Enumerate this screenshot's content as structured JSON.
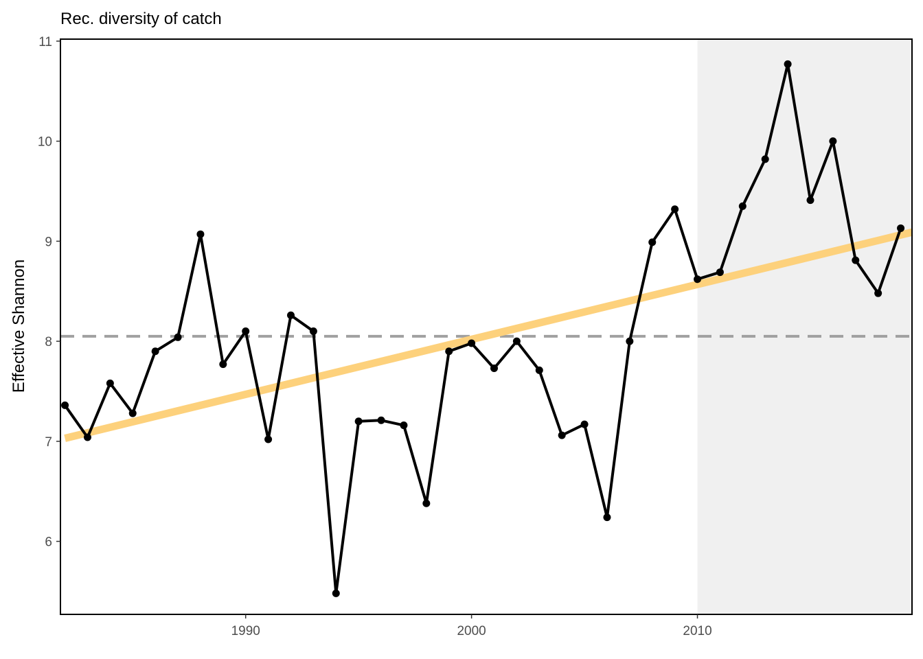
{
  "chart_data": {
    "type": "line",
    "title": "Rec. diversity of catch",
    "xlabel": "",
    "ylabel": "Effective Shannon",
    "xlim": [
      1981.8,
      2019.5
    ],
    "ylim": [
      5.27,
      11.02
    ],
    "x_ticks": [
      1990,
      2000,
      2010
    ],
    "y_ticks": [
      6,
      7,
      8,
      9,
      10,
      11
    ],
    "grid": false,
    "shaded_region": {
      "x_start": 2010,
      "x_end": 2019.5,
      "color": "#f0f0f0"
    },
    "reference_line": {
      "y": 8.05,
      "style": "dashed",
      "color": "#a0a0a0"
    },
    "trend_line": {
      "x": [
        1982,
        2019.5
      ],
      "y": [
        7.03,
        9.09
      ],
      "color": "#fdd17c"
    },
    "series": [
      {
        "color": "#000000",
        "x": [
          1982,
          1983,
          1984,
          1985,
          1986,
          1987,
          1988,
          1989,
          1990,
          1991,
          1992,
          1993,
          1994,
          1995,
          1996,
          1997,
          1998,
          1999,
          2000,
          2001,
          2002,
          2003,
          2004,
          2005,
          2006,
          2007,
          2008,
          2009,
          2010,
          2011,
          2012,
          2013,
          2014,
          2015,
          2016,
          2017,
          2018,
          2019
        ],
        "y": [
          7.36,
          7.04,
          7.58,
          7.28,
          7.9,
          8.04,
          9.07,
          7.77,
          8.1,
          7.02,
          8.26,
          8.1,
          5.48,
          7.2,
          7.21,
          7.16,
          6.38,
          7.9,
          7.98,
          7.73,
          8.0,
          7.71,
          7.06,
          7.17,
          6.24,
          8.0,
          8.99,
          9.32,
          8.62,
          8.69,
          9.35,
          9.82,
          10.77,
          9.41,
          10.0,
          8.81,
          8.48,
          9.13
        ]
      }
    ]
  }
}
